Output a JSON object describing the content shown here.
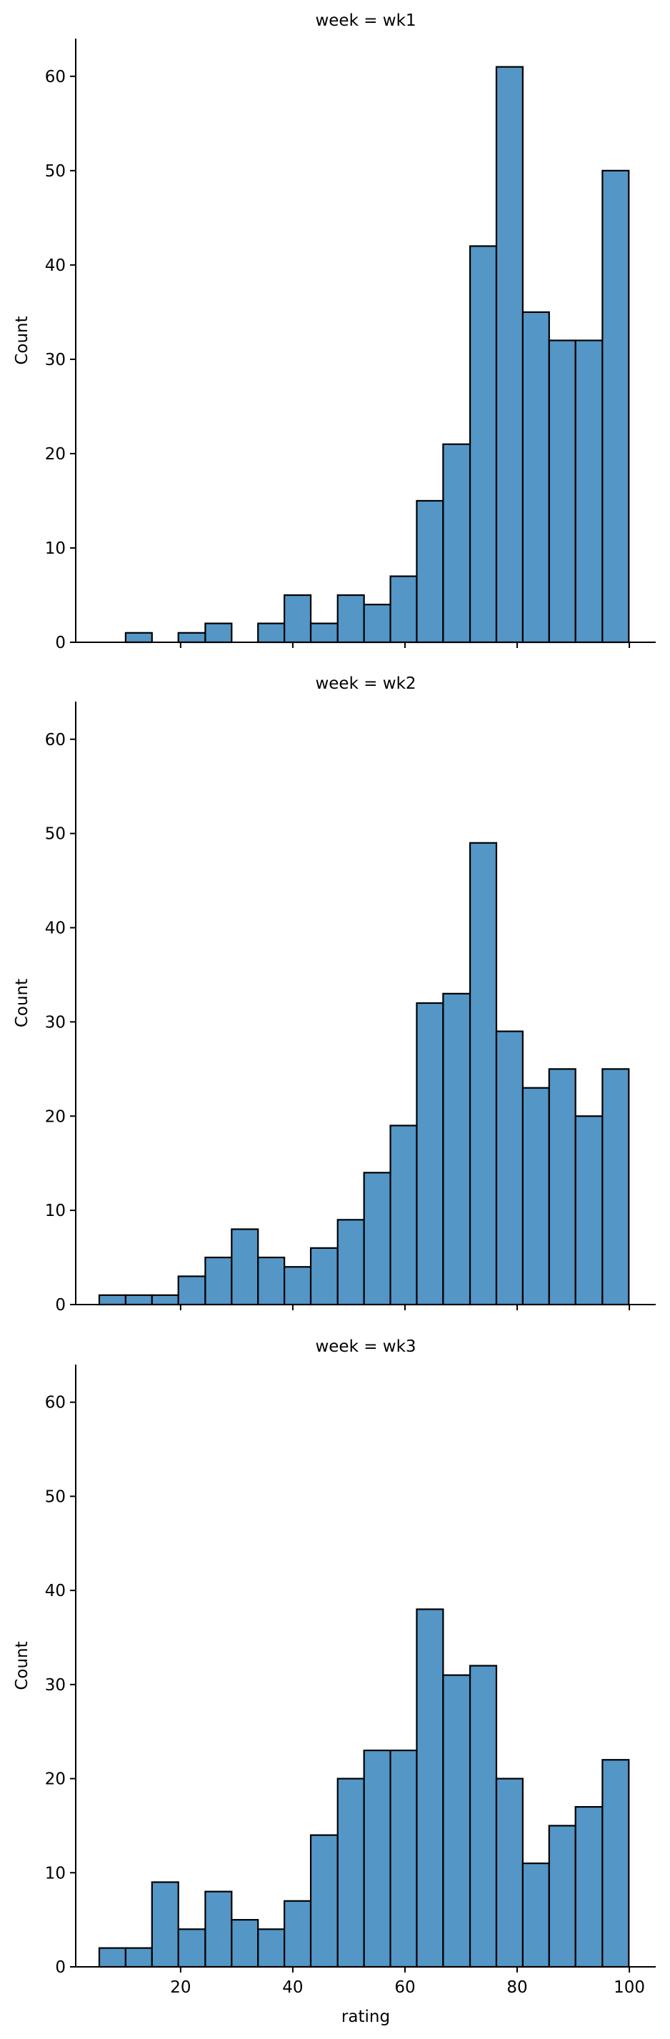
{
  "chart_data": [
    {
      "type": "bar",
      "title": "week = wk1",
      "ylabel": "Count",
      "xlabel": "",
      "ylim": [
        0,
        64
      ],
      "yticks": [
        0,
        10,
        20,
        30,
        40,
        50,
        60
      ],
      "xticks": [
        20,
        40,
        60,
        80,
        100
      ],
      "xticklabels_visible": false,
      "xlim": [
        1.3,
        104.7
      ],
      "bins": [
        {
          "x0": 5.5,
          "x1": 10.2,
          "count": 0
        },
        {
          "x0": 10.2,
          "x1": 14.9,
          "count": 1
        },
        {
          "x0": 14.9,
          "x1": 19.6,
          "count": 0
        },
        {
          "x0": 19.6,
          "x1": 24.4,
          "count": 1
        },
        {
          "x0": 24.4,
          "x1": 29.1,
          "count": 2
        },
        {
          "x0": 29.1,
          "x1": 33.8,
          "count": 0
        },
        {
          "x0": 33.8,
          "x1": 38.5,
          "count": 2
        },
        {
          "x0": 38.5,
          "x1": 43.2,
          "count": 5
        },
        {
          "x0": 43.2,
          "x1": 48.0,
          "count": 2
        },
        {
          "x0": 48.0,
          "x1": 52.7,
          "count": 5
        },
        {
          "x0": 52.7,
          "x1": 57.4,
          "count": 4
        },
        {
          "x0": 57.4,
          "x1": 62.1,
          "count": 7
        },
        {
          "x0": 62.1,
          "x1": 66.8,
          "count": 15
        },
        {
          "x0": 66.8,
          "x1": 71.6,
          "count": 21
        },
        {
          "x0": 71.6,
          "x1": 76.3,
          "count": 42
        },
        {
          "x0": 76.3,
          "x1": 81.0,
          "count": 61
        },
        {
          "x0": 81.0,
          "x1": 85.7,
          "count": 35
        },
        {
          "x0": 85.7,
          "x1": 90.4,
          "count": 32
        },
        {
          "x0": 90.4,
          "x1": 95.2,
          "count": 32
        },
        {
          "x0": 95.2,
          "x1": 99.9,
          "count": 50
        }
      ]
    },
    {
      "type": "bar",
      "title": "week = wk2",
      "ylabel": "Count",
      "xlabel": "",
      "ylim": [
        0,
        64
      ],
      "yticks": [
        0,
        10,
        20,
        30,
        40,
        50,
        60
      ],
      "xticks": [
        20,
        40,
        60,
        80,
        100
      ],
      "xticklabels_visible": false,
      "xlim": [
        1.3,
        104.7
      ],
      "bins": [
        {
          "x0": 5.5,
          "x1": 10.2,
          "count": 1
        },
        {
          "x0": 10.2,
          "x1": 14.9,
          "count": 1
        },
        {
          "x0": 14.9,
          "x1": 19.6,
          "count": 1
        },
        {
          "x0": 19.6,
          "x1": 24.4,
          "count": 3
        },
        {
          "x0": 24.4,
          "x1": 29.1,
          "count": 5
        },
        {
          "x0": 29.1,
          "x1": 33.8,
          "count": 8
        },
        {
          "x0": 33.8,
          "x1": 38.5,
          "count": 5
        },
        {
          "x0": 38.5,
          "x1": 43.2,
          "count": 4
        },
        {
          "x0": 43.2,
          "x1": 48.0,
          "count": 6
        },
        {
          "x0": 48.0,
          "x1": 52.7,
          "count": 9
        },
        {
          "x0": 52.7,
          "x1": 57.4,
          "count": 14
        },
        {
          "x0": 57.4,
          "x1": 62.1,
          "count": 19
        },
        {
          "x0": 62.1,
          "x1": 66.8,
          "count": 32
        },
        {
          "x0": 66.8,
          "x1": 71.6,
          "count": 33
        },
        {
          "x0": 71.6,
          "x1": 76.3,
          "count": 49
        },
        {
          "x0": 76.3,
          "x1": 81.0,
          "count": 29
        },
        {
          "x0": 81.0,
          "x1": 85.7,
          "count": 23
        },
        {
          "x0": 85.7,
          "x1": 90.4,
          "count": 25
        },
        {
          "x0": 90.4,
          "x1": 95.2,
          "count": 20
        },
        {
          "x0": 95.2,
          "x1": 99.9,
          "count": 25
        }
      ]
    },
    {
      "type": "bar",
      "title": "week = wk3",
      "ylabel": "Count",
      "xlabel": "rating",
      "ylim": [
        0,
        64
      ],
      "yticks": [
        0,
        10,
        20,
        30,
        40,
        50,
        60
      ],
      "xticks": [
        20,
        40,
        60,
        80,
        100
      ],
      "xticklabels_visible": true,
      "xlim": [
        1.3,
        104.7
      ],
      "bins": [
        {
          "x0": 5.5,
          "x1": 10.2,
          "count": 2
        },
        {
          "x0": 10.2,
          "x1": 14.9,
          "count": 2
        },
        {
          "x0": 14.9,
          "x1": 19.6,
          "count": 9
        },
        {
          "x0": 19.6,
          "x1": 24.4,
          "count": 4
        },
        {
          "x0": 24.4,
          "x1": 29.1,
          "count": 8
        },
        {
          "x0": 29.1,
          "x1": 33.8,
          "count": 5
        },
        {
          "x0": 33.8,
          "x1": 38.5,
          "count": 4
        },
        {
          "x0": 38.5,
          "x1": 43.2,
          "count": 7
        },
        {
          "x0": 43.2,
          "x1": 48.0,
          "count": 14
        },
        {
          "x0": 48.0,
          "x1": 52.7,
          "count": 20
        },
        {
          "x0": 52.7,
          "x1": 57.4,
          "count": 23
        },
        {
          "x0": 57.4,
          "x1": 62.1,
          "count": 23
        },
        {
          "x0": 62.1,
          "x1": 66.8,
          "count": 38
        },
        {
          "x0": 66.8,
          "x1": 71.6,
          "count": 31
        },
        {
          "x0": 71.6,
          "x1": 76.3,
          "count": 32
        },
        {
          "x0": 76.3,
          "x1": 81.0,
          "count": 20
        },
        {
          "x0": 81.0,
          "x1": 85.7,
          "count": 11
        },
        {
          "x0": 85.7,
          "x1": 90.4,
          "count": 15
        },
        {
          "x0": 90.4,
          "x1": 95.2,
          "count": 17
        },
        {
          "x0": 95.2,
          "x1": 99.9,
          "count": 22
        }
      ]
    }
  ],
  "colors": {
    "bar_fill": "#5496c6",
    "bar_edge": "#000000",
    "text": "#000000",
    "background": "#ffffff"
  }
}
